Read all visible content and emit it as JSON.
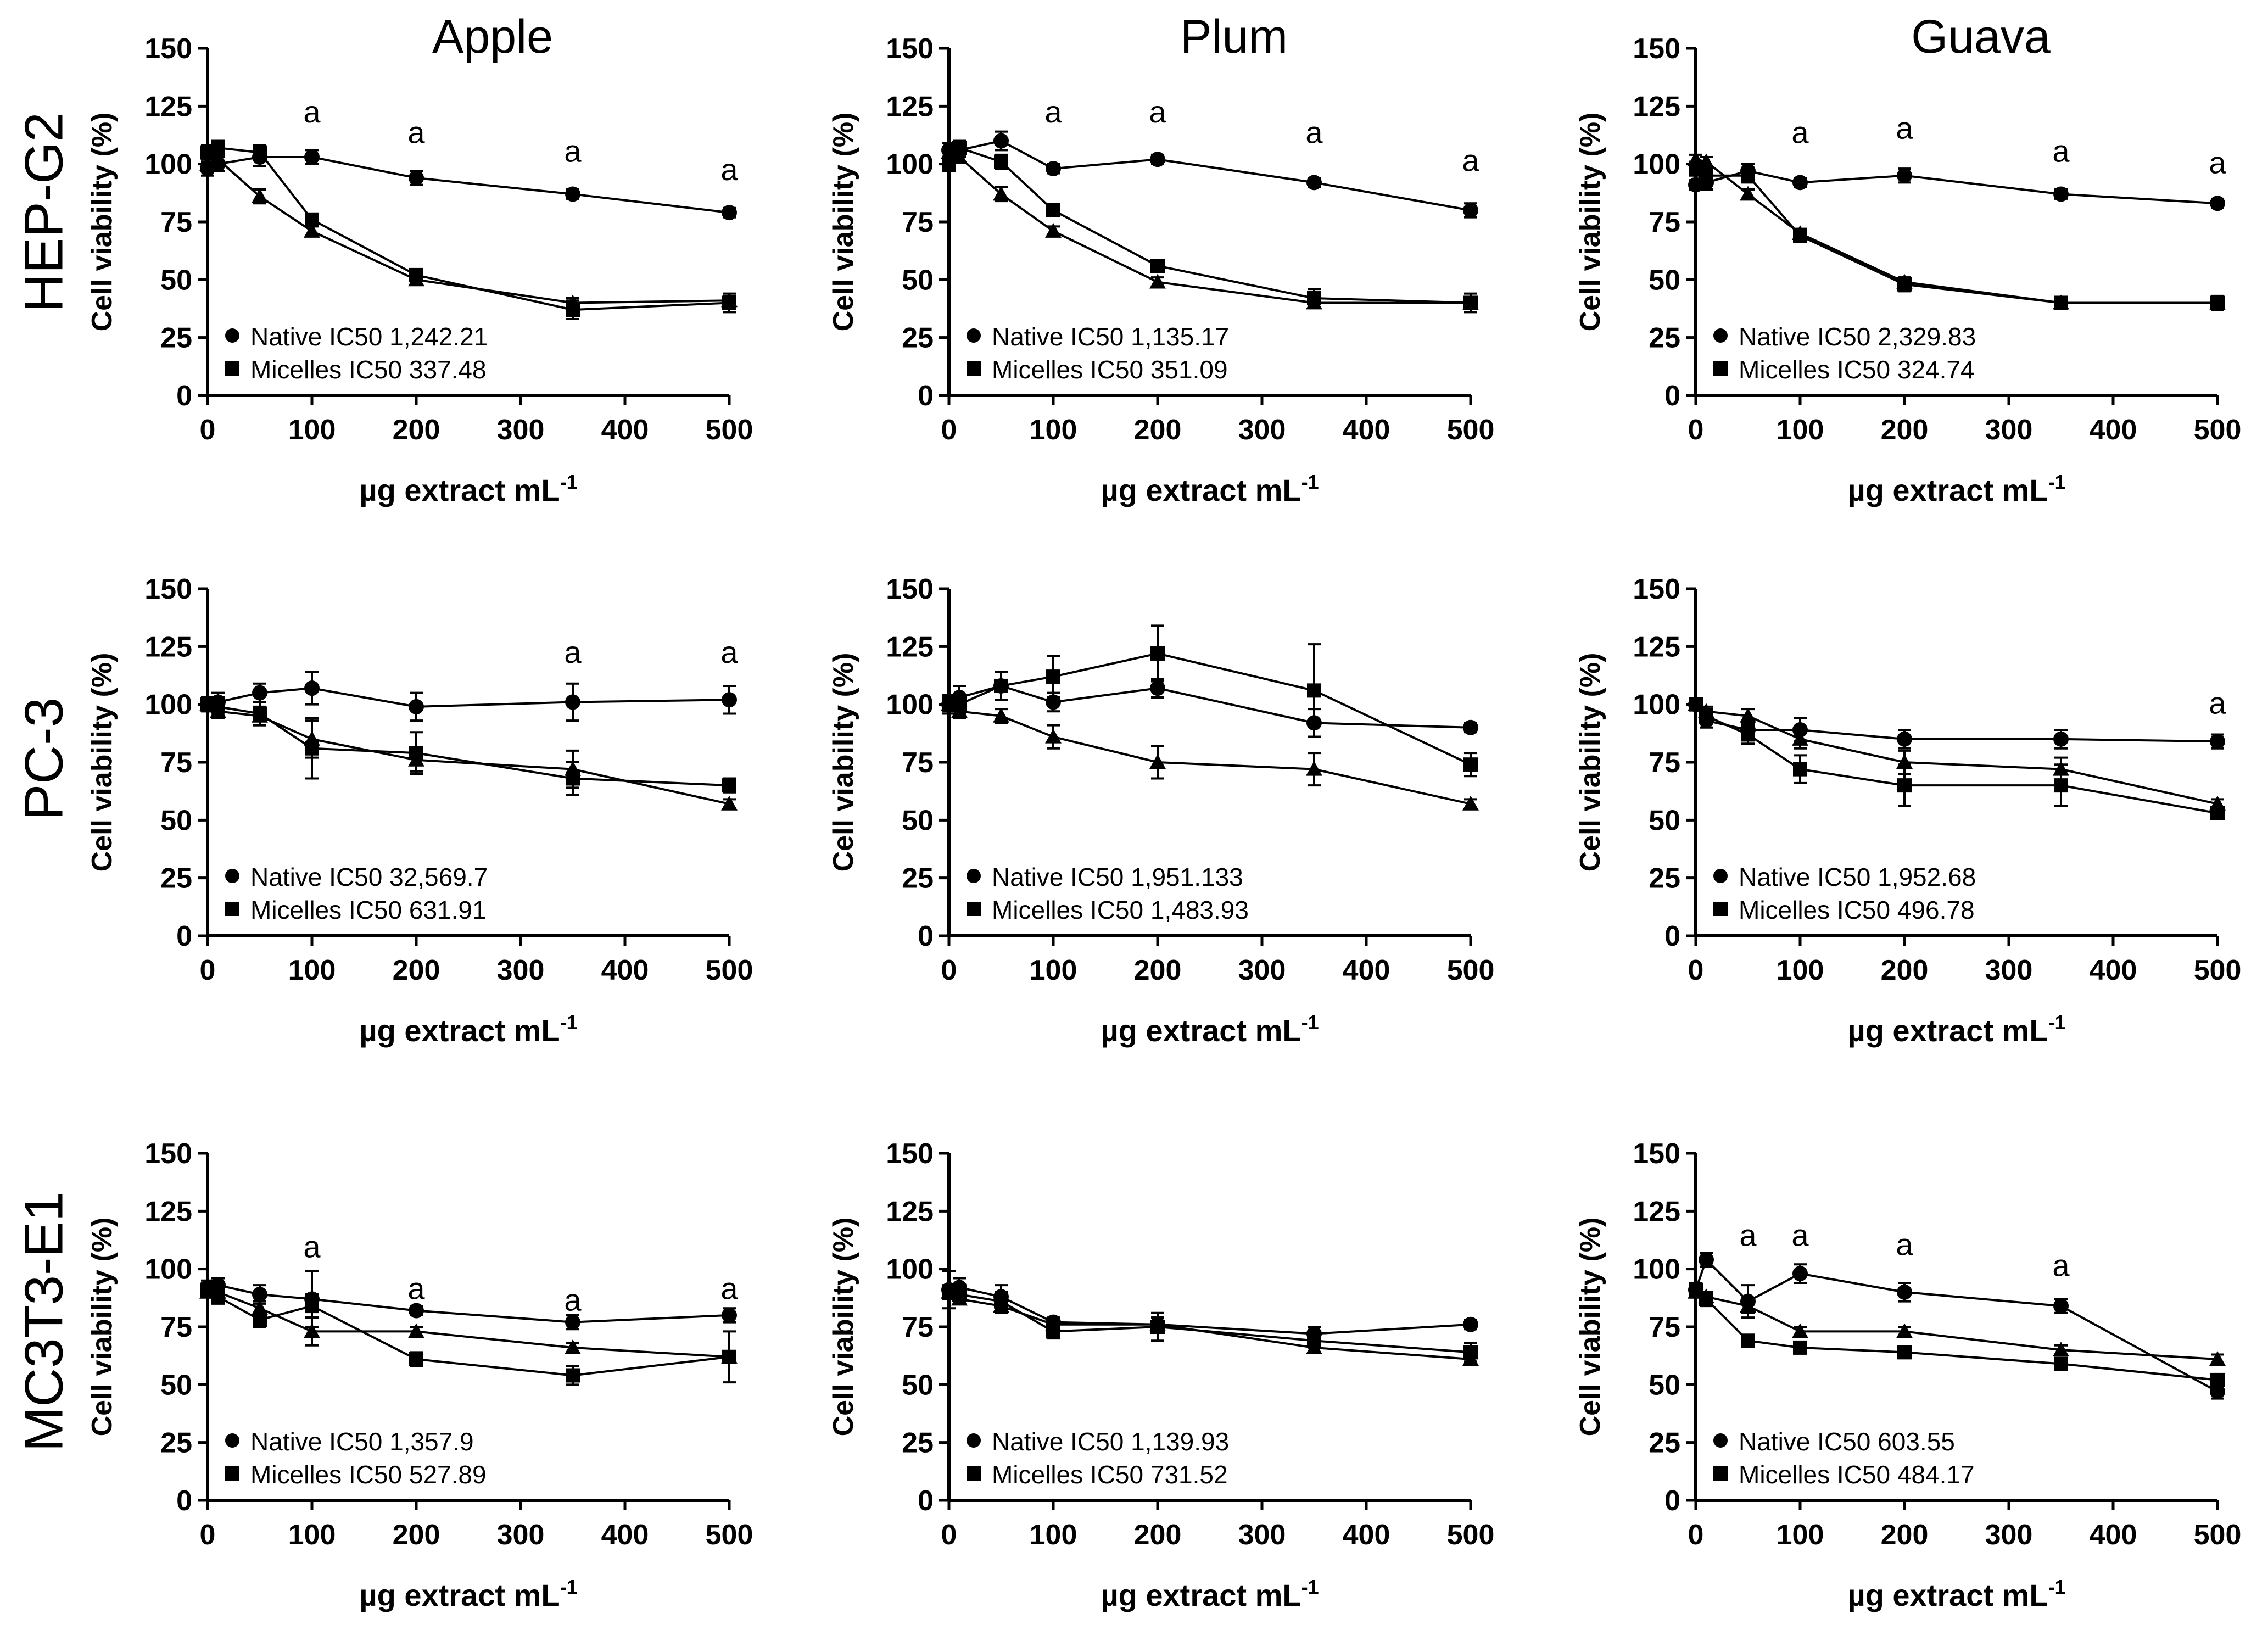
{
  "figure": {
    "columns": [
      "Apple",
      "Plum",
      "Guava"
    ],
    "rows": [
      "HEP-G2",
      "PC-3",
      "MC3T3-E1"
    ]
  },
  "colors": {
    "ink": "#000000",
    "background": "#ffffff"
  },
  "chart_data": [
    {
      "id": "hepg2-apple",
      "type": "line",
      "title": "Apple",
      "cell_line": "HEP-G2",
      "xlabel": "µg extract mL",
      "xlabel_sup": "-1",
      "ylabel": "Cell viability (%)",
      "xlim": [
        0,
        500
      ],
      "ylim": [
        0,
        150
      ],
      "xticks": [
        0,
        100,
        200,
        300,
        400,
        500
      ],
      "yticks": [
        0,
        25,
        50,
        75,
        100,
        125,
        150
      ],
      "x": [
        0,
        10,
        50,
        100,
        200,
        350,
        500
      ],
      "series": [
        {
          "name": "Native",
          "marker": "circle",
          "values": [
            98,
            100,
            103,
            103,
            94,
            87,
            79
          ],
          "errors": [
            3,
            3,
            4,
            3,
            3,
            2,
            2
          ]
        },
        {
          "name": "Micelles",
          "marker": "square",
          "values": [
            105,
            107,
            105,
            76,
            52,
            37,
            40
          ],
          "errors": [
            3,
            3,
            3,
            2,
            2,
            4,
            4
          ]
        },
        {
          "name": "Triangle series",
          "marker": "triangle",
          "values": [
            100,
            102,
            86,
            71,
            50,
            40,
            41
          ],
          "errors": [
            2,
            2,
            3,
            2,
            2,
            2,
            2
          ]
        }
      ],
      "annotations": [
        {
          "x": 100,
          "y": 118,
          "text": "a"
        },
        {
          "x": 200,
          "y": 109,
          "text": "a"
        },
        {
          "x": 350,
          "y": 101,
          "text": "a"
        },
        {
          "x": 500,
          "y": 93,
          "text": "a"
        }
      ],
      "legend": [
        "Native IC50 1,242.21",
        "Micelles IC50 337.48"
      ]
    },
    {
      "id": "hepg2-plum",
      "type": "line",
      "title": "Plum",
      "cell_line": "HEP-G2",
      "xlabel": "µg extract mL",
      "xlabel_sup": "-1",
      "ylabel": "Cell viability (%)",
      "xlim": [
        0,
        500
      ],
      "ylim": [
        0,
        150
      ],
      "xticks": [
        0,
        100,
        200,
        300,
        400,
        500
      ],
      "yticks": [
        0,
        25,
        50,
        75,
        100,
        125,
        150
      ],
      "x": [
        0,
        10,
        50,
        100,
        200,
        350,
        500
      ],
      "series": [
        {
          "name": "Native",
          "marker": "circle",
          "values": [
            106,
            106,
            110,
            98,
            102,
            92,
            80
          ],
          "errors": [
            3,
            3,
            4,
            2,
            2,
            2,
            3
          ]
        },
        {
          "name": "Micelles",
          "marker": "square",
          "values": [
            100,
            107,
            101,
            80,
            56,
            42,
            40
          ],
          "errors": [
            3,
            3,
            3,
            2,
            2,
            4,
            4
          ]
        },
        {
          "name": "Triangle series",
          "marker": "triangle",
          "values": [
            105,
            103,
            87,
            71,
            49,
            40,
            40
          ],
          "errors": [
            2,
            2,
            3,
            2,
            2,
            2,
            2
          ]
        }
      ],
      "annotations": [
        {
          "x": 100,
          "y": 118,
          "text": "a"
        },
        {
          "x": 200,
          "y": 118,
          "text": "a"
        },
        {
          "x": 350,
          "y": 109,
          "text": "a"
        },
        {
          "x": 500,
          "y": 97,
          "text": "a"
        }
      ],
      "legend": [
        "Native IC50 1,135.17",
        "Micelles IC50 351.09"
      ]
    },
    {
      "id": "hepg2-guava",
      "type": "line",
      "title": "Guava",
      "cell_line": "HEP-G2",
      "xlabel": "µg extract mL",
      "xlabel_sup": "-1",
      "ylabel": "Cell viability (%)",
      "xlim": [
        0,
        500
      ],
      "ylim": [
        0,
        150
      ],
      "xticks": [
        0,
        100,
        200,
        300,
        400,
        500
      ],
      "yticks": [
        0,
        25,
        50,
        75,
        100,
        125,
        150
      ],
      "x": [
        0,
        10,
        50,
        100,
        200,
        350,
        500
      ],
      "series": [
        {
          "name": "Native",
          "marker": "circle",
          "values": [
            91,
            92,
            97,
            92,
            95,
            87,
            83
          ],
          "errors": [
            2,
            3,
            3,
            2,
            3,
            2,
            2
          ]
        },
        {
          "name": "Micelles",
          "marker": "square",
          "values": [
            98,
            95,
            95,
            69,
            48,
            40,
            40
          ],
          "errors": [
            3,
            3,
            3,
            2,
            3,
            2,
            3
          ]
        },
        {
          "name": "Triangle series",
          "marker": "triangle",
          "values": [
            102,
            101,
            87,
            70,
            49,
            40,
            40
          ],
          "errors": [
            2,
            2,
            2,
            2,
            2,
            2,
            2
          ]
        }
      ],
      "annotations": [
        {
          "x": 100,
          "y": 109,
          "text": "a"
        },
        {
          "x": 200,
          "y": 111,
          "text": "a"
        },
        {
          "x": 350,
          "y": 101,
          "text": "a"
        },
        {
          "x": 500,
          "y": 96,
          "text": "a"
        }
      ],
      "legend": [
        "Native IC50 2,329.83",
        "Micelles IC50 324.74"
      ]
    },
    {
      "id": "pc3-apple",
      "type": "line",
      "title": "Apple",
      "cell_line": "PC-3",
      "xlabel": "µg extract mL",
      "xlabel_sup": "-1",
      "ylabel": "Cell viability (%)",
      "xlim": [
        0,
        500
      ],
      "ylim": [
        0,
        150
      ],
      "xticks": [
        0,
        100,
        200,
        300,
        400,
        500
      ],
      "yticks": [
        0,
        25,
        50,
        75,
        100,
        125,
        150
      ],
      "x": [
        0,
        10,
        50,
        100,
        200,
        350,
        500
      ],
      "series": [
        {
          "name": "Native",
          "marker": "circle",
          "values": [
            100,
            101,
            105,
            107,
            99,
            101,
            102
          ],
          "errors": [
            3,
            4,
            4,
            7,
            6,
            8,
            6
          ]
        },
        {
          "name": "Micelles",
          "marker": "square",
          "values": [
            100,
            99,
            96,
            81,
            79,
            68,
            65
          ],
          "errors": [
            3,
            4,
            5,
            13,
            9,
            7,
            3
          ]
        },
        {
          "name": "Triangle series",
          "marker": "triangle",
          "values": [
            100,
            97,
            95,
            85,
            76,
            72,
            57
          ],
          "errors": [
            2,
            3,
            4,
            8,
            5,
            8,
            2
          ]
        }
      ],
      "annotations": [
        {
          "x": 350,
          "y": 118,
          "text": "a"
        },
        {
          "x": 500,
          "y": 118,
          "text": "a"
        }
      ],
      "legend": [
        "Native IC50 32,569.7",
        "Micelles IC50 631.91"
      ]
    },
    {
      "id": "pc3-plum",
      "type": "line",
      "title": "Plum",
      "cell_line": "PC-3",
      "xlabel": "µg extract mL",
      "xlabel_sup": "-1",
      "ylabel": "Cell viability (%)",
      "xlim": [
        0,
        500
      ],
      "ylim": [
        0,
        150
      ],
      "xticks": [
        0,
        100,
        200,
        300,
        400,
        500
      ],
      "yticks": [
        0,
        25,
        50,
        75,
        100,
        125,
        150
      ],
      "x": [
        0,
        10,
        50,
        100,
        200,
        350,
        500
      ],
      "series": [
        {
          "name": "Native",
          "marker": "circle",
          "values": [
            100,
            103,
            108,
            101,
            107,
            92,
            90
          ],
          "errors": [
            4,
            5,
            6,
            4,
            4,
            6,
            2
          ]
        },
        {
          "name": "Micelles",
          "marker": "square",
          "values": [
            100,
            100,
            108,
            112,
            122,
            106,
            74
          ],
          "errors": [
            3,
            4,
            6,
            9,
            12,
            20,
            5
          ]
        },
        {
          "name": "Triangle series",
          "marker": "triangle",
          "values": [
            100,
            97,
            95,
            86,
            75,
            72,
            57
          ],
          "errors": [
            2,
            3,
            3,
            5,
            7,
            7,
            2
          ]
        }
      ],
      "annotations": [],
      "legend": [
        "Native IC50 1,951.133",
        "Micelles IC50 1,483.93"
      ]
    },
    {
      "id": "pc3-guava",
      "type": "line",
      "title": "Guava",
      "cell_line": "PC-3",
      "xlabel": "µg extract mL",
      "xlabel_sup": "-1",
      "ylabel": "Cell viability (%)",
      "xlim": [
        0,
        500
      ],
      "ylim": [
        0,
        150
      ],
      "xticks": [
        0,
        100,
        200,
        300,
        400,
        500
      ],
      "yticks": [
        0,
        25,
        50,
        75,
        100,
        125,
        150
      ],
      "x": [
        0,
        10,
        50,
        100,
        200,
        350,
        500
      ],
      "series": [
        {
          "name": "Native",
          "marker": "circle",
          "values": [
            100,
            93,
            89,
            89,
            85,
            85,
            84
          ],
          "errors": [
            2,
            3,
            3,
            5,
            4,
            4,
            3
          ]
        },
        {
          "name": "Micelles",
          "marker": "square",
          "values": [
            100,
            95,
            87,
            72,
            65,
            65,
            53
          ],
          "errors": [
            2,
            3,
            4,
            6,
            9,
            9,
            2
          ]
        },
        {
          "name": "Triangle series",
          "marker": "triangle",
          "values": [
            100,
            97,
            95,
            85,
            75,
            72,
            57
          ],
          "errors": [
            2,
            2,
            3,
            4,
            5,
            5,
            2
          ]
        }
      ],
      "annotations": [
        {
          "x": 500,
          "y": 96,
          "text": "a"
        }
      ],
      "legend": [
        "Native IC50 1,952.68",
        "Micelles IC50 496.78"
      ]
    },
    {
      "id": "mc3t3-apple",
      "type": "line",
      "title": "Apple",
      "cell_line": "MC3T3-E1",
      "xlabel": "µg extract mL",
      "xlabel_sup": "-1",
      "ylabel": "Cell viability (%)",
      "xlim": [
        0,
        500
      ],
      "ylim": [
        0,
        150
      ],
      "xticks": [
        0,
        100,
        200,
        300,
        400,
        500
      ],
      "yticks": [
        0,
        25,
        50,
        75,
        100,
        125,
        150
      ],
      "x": [
        0,
        10,
        50,
        100,
        200,
        350,
        500
      ],
      "series": [
        {
          "name": "Native",
          "marker": "circle",
          "values": [
            92,
            93,
            89,
            87,
            82,
            77,
            80
          ],
          "errors": [
            3,
            3,
            4,
            12,
            2,
            3,
            3
          ]
        },
        {
          "name": "Micelles",
          "marker": "square",
          "values": [
            91,
            88,
            78,
            84,
            61,
            54,
            62
          ],
          "errors": [
            3,
            3,
            3,
            5,
            3,
            4,
            11
          ]
        },
        {
          "name": "Triangle series",
          "marker": "triangle",
          "values": [
            90,
            90,
            83,
            73,
            73,
            66,
            62
          ],
          "errors": [
            2,
            3,
            3,
            6,
            2,
            2,
            2
          ]
        }
      ],
      "annotations": [
        {
          "x": 100,
          "y": 105,
          "text": "a"
        },
        {
          "x": 200,
          "y": 87,
          "text": "a"
        },
        {
          "x": 350,
          "y": 82,
          "text": "a"
        },
        {
          "x": 500,
          "y": 87,
          "text": "a"
        }
      ],
      "legend": [
        "Native IC50 1,357.9",
        "Micelles IC50 527.89"
      ]
    },
    {
      "id": "mc3t3-plum",
      "type": "line",
      "title": "Plum",
      "cell_line": "MC3T3-E1",
      "xlabel": "µg extract mL",
      "xlabel_sup": "-1",
      "ylabel": "Cell viability (%)",
      "xlim": [
        0,
        500
      ],
      "ylim": [
        0,
        150
      ],
      "xticks": [
        0,
        100,
        200,
        300,
        400,
        500
      ],
      "yticks": [
        0,
        25,
        50,
        75,
        100,
        125,
        150
      ],
      "x": [
        0,
        10,
        50,
        100,
        200,
        350,
        500
      ],
      "series": [
        {
          "name": "Native",
          "marker": "circle",
          "values": [
            91,
            92,
            88,
            77,
            76,
            72,
            76
          ],
          "errors": [
            8,
            4,
            5,
            2,
            3,
            3,
            2
          ]
        },
        {
          "name": "Micelles",
          "marker": "square",
          "values": [
            90,
            89,
            86,
            73,
            75,
            69,
            64
          ],
          "errors": [
            3,
            3,
            4,
            3,
            6,
            3,
            4
          ]
        },
        {
          "name": "Triangle series",
          "marker": "triangle",
          "values": [
            90,
            87,
            84,
            76,
            76,
            66,
            61
          ],
          "errors": [
            2,
            2,
            3,
            2,
            3,
            2,
            2
          ]
        }
      ],
      "annotations": [],
      "legend": [
        "Native IC50 1,139.93",
        "Micelles IC50 731.52"
      ]
    },
    {
      "id": "mc3t3-guava",
      "type": "line",
      "title": "Guava",
      "cell_line": "MC3T3-E1",
      "xlabel": "µg extract mL",
      "xlabel_sup": "-1",
      "ylabel": "Cell viability (%)",
      "xlim": [
        0,
        500
      ],
      "ylim": [
        0,
        150
      ],
      "xticks": [
        0,
        100,
        200,
        300,
        400,
        500
      ],
      "yticks": [
        0,
        25,
        50,
        75,
        100,
        125,
        150
      ],
      "x": [
        0,
        10,
        50,
        100,
        200,
        350,
        500
      ],
      "series": [
        {
          "name": "Native",
          "marker": "circle",
          "values": [
            91,
            104,
            86,
            98,
            90,
            84,
            47
          ],
          "errors": [
            3,
            3,
            7,
            4,
            4,
            3,
            3
          ]
        },
        {
          "name": "Micelles",
          "marker": "square",
          "values": [
            91,
            87,
            69,
            66,
            64,
            59,
            52
          ],
          "errors": [
            3,
            3,
            2,
            2,
            2,
            2,
            2
          ]
        },
        {
          "name": "Triangle series",
          "marker": "triangle",
          "values": [
            90,
            88,
            84,
            73,
            73,
            65,
            61
          ],
          "errors": [
            2,
            2,
            3,
            2,
            2,
            2,
            2
          ]
        }
      ],
      "annotations": [
        {
          "x": 50,
          "y": 110,
          "text": "a"
        },
        {
          "x": 100,
          "y": 110,
          "text": "a"
        },
        {
          "x": 200,
          "y": 106,
          "text": "a"
        },
        {
          "x": 350,
          "y": 97,
          "text": "a"
        }
      ],
      "legend": [
        "Native IC50 603.55",
        "Micelles IC50 484.17"
      ]
    }
  ]
}
